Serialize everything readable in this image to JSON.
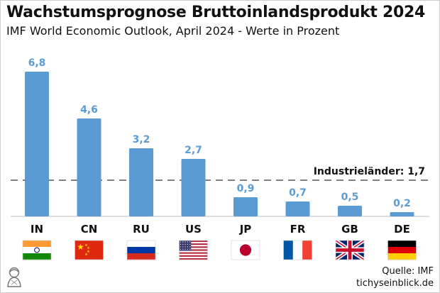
{
  "title": "Wachstumsprognose Bruttoinlandsprodukt 2024",
  "subtitle": "IMF World Economic Outlook, April 2024 - Werte in Prozent",
  "source_line1": "Quelle: IMF",
  "source_line2": "tichyseinblick.de",
  "colors": {
    "bar": "#5b9bd5",
    "value_label": "#5b9bd5",
    "reference_line": "#555555"
  },
  "chart_data": {
    "type": "bar",
    "categories": [
      "IN",
      "CN",
      "RU",
      "US",
      "JP",
      "FR",
      "GB",
      "DE"
    ],
    "values": [
      6.8,
      4.6,
      3.2,
      2.7,
      0.9,
      0.7,
      0.5,
      0.2
    ],
    "value_labels": [
      "6,8",
      "4,6",
      "3,2",
      "2,7",
      "0,9",
      "0,7",
      "0,5",
      "0,2"
    ],
    "ylim": [
      0,
      7.4
    ],
    "grid": false,
    "reference_line": {
      "value": 1.7,
      "label": "Industrieländer: 1,7"
    },
    "flags": [
      "india-flag-icon",
      "china-flag-icon",
      "russia-flag-icon",
      "usa-flag-icon",
      "japan-flag-icon",
      "france-flag-icon",
      "uk-flag-icon",
      "germany-flag-icon"
    ]
  }
}
